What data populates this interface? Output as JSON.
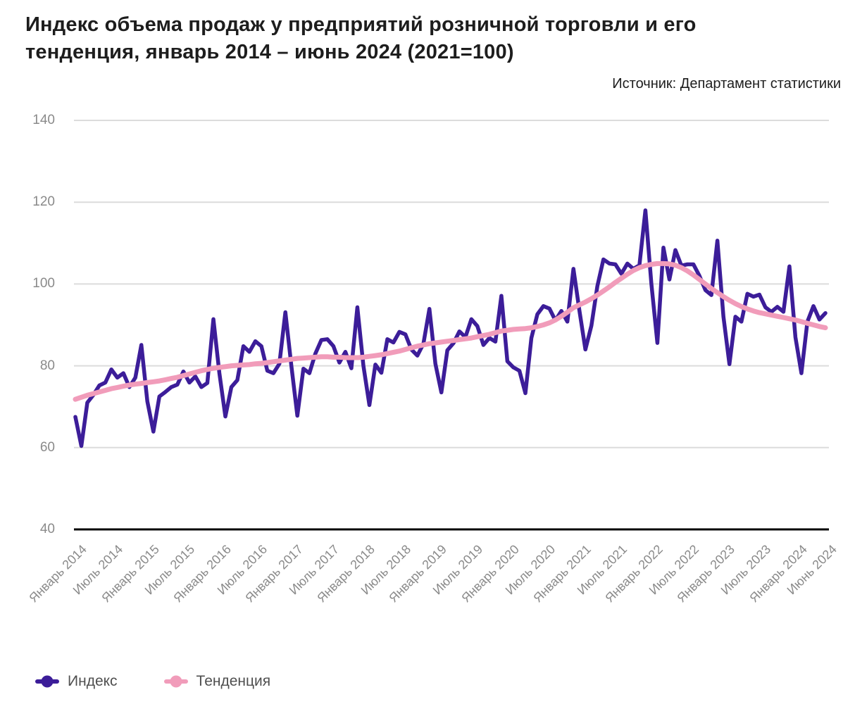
{
  "title": {
    "line1": "Индекс объема продаж у предприятий розничной торговли и его",
    "line2": "тенденция, январь 2014 – июнь 2024 (2021=100)"
  },
  "source": "Источник: Департамент статистики",
  "colors": {
    "index_line": "#3c1d99",
    "trend_line": "#f19cba",
    "gridline": "#dcdcdc",
    "baseline": "#000000",
    "axis_text": "#8a8a8a",
    "title_text": "#1d1d1d",
    "legend_text": "#4f4f4f"
  },
  "legend": [
    {
      "label": "Индекс",
      "color": "#3c1d99"
    },
    {
      "label": "Тенденция",
      "color": "#f19cba"
    }
  ],
  "chart_data": {
    "type": "line",
    "title": "Индекс объема продаж у предприятий розничной торговли и его тенденция, январь 2014 – июнь 2024 (2021=100)",
    "x_start": "Январь 2014",
    "x_end": "Июнь 2024",
    "x_frequency": "monthly",
    "y_ticks": [
      40,
      60,
      80,
      100,
      120,
      140
    ],
    "ylim": [
      40,
      145
    ],
    "grid": "horizontal",
    "legend_position": "bottom-left",
    "x_tick_month_offsets": [
      0,
      6,
      12,
      18,
      24,
      30,
      36,
      42,
      48,
      54,
      60,
      66,
      72,
      78,
      84,
      90,
      96,
      102,
      108,
      114,
      120,
      125
    ],
    "x_tick_labels": [
      "Январь 2014",
      "Июль 2014",
      "Январь 2015",
      "Июль 2015",
      "Январь 2016",
      "Июль 2016",
      "Январь 2017",
      "Июль 2017",
      "Январь 2018",
      "Июль 2018",
      "Январь 2019",
      "Июль 2019",
      "Январь 2020",
      "Июль 2020",
      "Январь 2021",
      "Июль 2021",
      "Январь 2022",
      "Июль 2022",
      "Январь 2023",
      "Июль 2023",
      "Январь 2024",
      "Июнь 2024"
    ],
    "series": [
      {
        "name": "Индекс",
        "color": "#3c1d99",
        "values": [
          67.5,
          60.4,
          71.0,
          72.9,
          75.2,
          75.9,
          79.1,
          77.1,
          78.2,
          74.8,
          77.1,
          85.1,
          71.3,
          63.9,
          72.5,
          73.6,
          74.8,
          75.4,
          78.6,
          75.9,
          77.4,
          74.8,
          75.8,
          91.4,
          78.2,
          67.6,
          74.8,
          76.5,
          84.8,
          83.4,
          86.0,
          84.8,
          78.8,
          78.2,
          80.5,
          93.1,
          80.0,
          67.8,
          79.3,
          78.2,
          83.0,
          86.3,
          86.5,
          84.8,
          80.8,
          83.4,
          79.4,
          94.3,
          80.0,
          70.4,
          80.3,
          78.3,
          86.5,
          85.7,
          88.3,
          87.7,
          84.0,
          82.5,
          85.4,
          93.9,
          80.5,
          73.5,
          83.8,
          85.5,
          88.4,
          87.0,
          91.4,
          89.7,
          85.1,
          86.8,
          85.9,
          97.1,
          81.1,
          79.6,
          78.8,
          73.3,
          86.8,
          92.6,
          94.6,
          94.0,
          91.1,
          93.4,
          90.8,
          103.7,
          93.5,
          84.0,
          89.8,
          99.5,
          106.0,
          105.0,
          104.8,
          102.5,
          105.0,
          103.7,
          104.6,
          118.0,
          100.0,
          85.6,
          108.9,
          101.1,
          108.3,
          104.5,
          104.8,
          104.8,
          102.0,
          98.5,
          97.3,
          110.6,
          92.0,
          80.4,
          92.0,
          90.8,
          97.6,
          96.9,
          97.4,
          94.3,
          93.2,
          94.4,
          93.2,
          104.3,
          87.0,
          78.2,
          90.8,
          94.6,
          91.3,
          92.9
        ]
      },
      {
        "name": "Тенденция",
        "color": "#f19cba",
        "values": [
          71.8,
          72.3,
          72.8,
          73.2,
          73.6,
          74.0,
          74.4,
          74.7,
          75.0,
          75.3,
          75.5,
          75.7,
          75.9,
          76.1,
          76.3,
          76.6,
          76.9,
          77.2,
          77.6,
          78.0,
          78.4,
          78.8,
          79.1,
          79.4,
          79.6,
          79.8,
          80.0,
          80.1,
          80.2,
          80.3,
          80.5,
          80.6,
          80.8,
          81.0,
          81.2,
          81.4,
          81.6,
          81.8,
          81.9,
          82.0,
          82.1,
          82.2,
          82.2,
          82.1,
          82.1,
          82.0,
          82.0,
          82.0,
          82.1,
          82.3,
          82.5,
          82.7,
          83.0,
          83.3,
          83.6,
          84.0,
          84.4,
          84.8,
          85.1,
          85.4,
          85.6,
          85.8,
          86.0,
          86.2,
          86.4,
          86.6,
          86.8,
          87.1,
          87.4,
          87.7,
          88.1,
          88.5,
          88.7,
          88.9,
          89.0,
          89.1,
          89.3,
          89.6,
          90.0,
          90.5,
          91.2,
          92.1,
          93.1,
          94.2,
          94.9,
          95.6,
          96.4,
          97.3,
          98.3,
          99.3,
          100.4,
          101.4,
          102.4,
          103.3,
          104.0,
          104.5,
          104.8,
          105.0,
          105.0,
          104.9,
          104.6,
          104.0,
          103.2,
          102.2,
          101.1,
          100.0,
          98.9,
          97.9,
          96.9,
          96.0,
          95.2,
          94.5,
          93.9,
          93.4,
          93.0,
          92.7,
          92.4,
          92.1,
          91.8,
          91.5,
          91.2,
          90.8,
          90.4,
          90.0,
          89.6,
          89.3
        ]
      }
    ]
  }
}
